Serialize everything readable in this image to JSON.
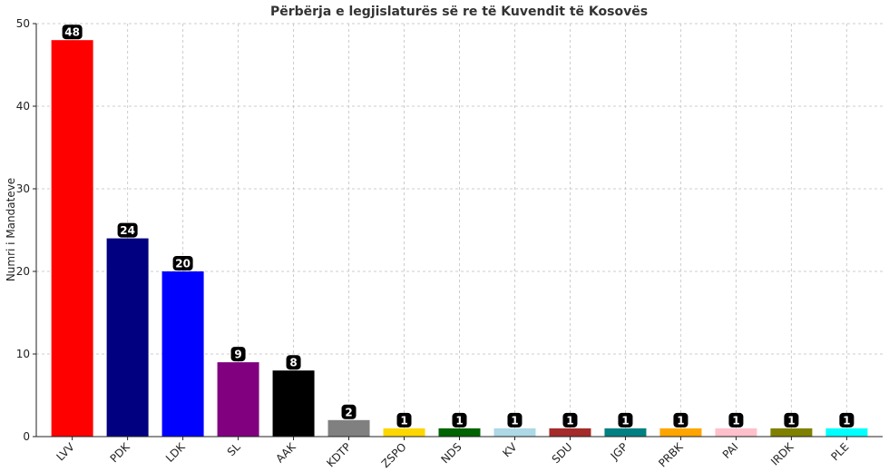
{
  "chart_data": {
    "type": "bar",
    "title": "Përbërja e legjislaturës së re të Kuvendit të Kosovës",
    "xlabel": "",
    "ylabel": "Numri i Mandateve",
    "ylim": [
      0,
      50
    ],
    "yticks": [
      0,
      10,
      20,
      30,
      40,
      50
    ],
    "grid": true,
    "legend": "none",
    "categories": [
      "LVV",
      "PDK",
      "LDK",
      "SL",
      "AAK",
      "KDTP",
      "ZSPO",
      "NDS",
      "KV",
      "SDU",
      "JGP",
      "PRBK",
      "PAI",
      "IRDK",
      "PLE"
    ],
    "values": [
      48,
      24,
      20,
      9,
      8,
      2,
      1,
      1,
      1,
      1,
      1,
      1,
      1,
      1,
      1
    ],
    "colors": [
      "#ff0000",
      "#000080",
      "#0000ff",
      "#800080",
      "#000000",
      "#808080",
      "#ffd700",
      "#006400",
      "#add8e6",
      "#a52a2a",
      "#008080",
      "#ffa500",
      "#ffc0cb",
      "#808000",
      "#00ffff"
    ]
  }
}
